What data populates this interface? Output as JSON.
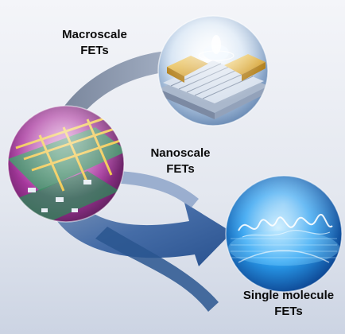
{
  "labels": {
    "macroscale": {
      "line1": "Macroscale",
      "line2": "FETs"
    },
    "nanoscale": {
      "line1": "Nanoscale",
      "line2": "FETs"
    },
    "single_molecule": {
      "line1": "Single molecule",
      "line2": "FETs"
    }
  },
  "colors": {
    "background_top": "#f2f3f7",
    "background_bottom": "#cfd6e4",
    "arrow": "#2f5c9c",
    "arrow_light": "#8fa6c8",
    "gold": "#e7b53a",
    "magenta": "#b23aa8",
    "green_circuit": "#3f9a6a",
    "blue_sphere": "#1e8fe0"
  },
  "icons": [
    "macroscale-device-sphere",
    "nanoscale-circuit-sphere",
    "single-molecule-sphere",
    "cycle-arrow"
  ]
}
